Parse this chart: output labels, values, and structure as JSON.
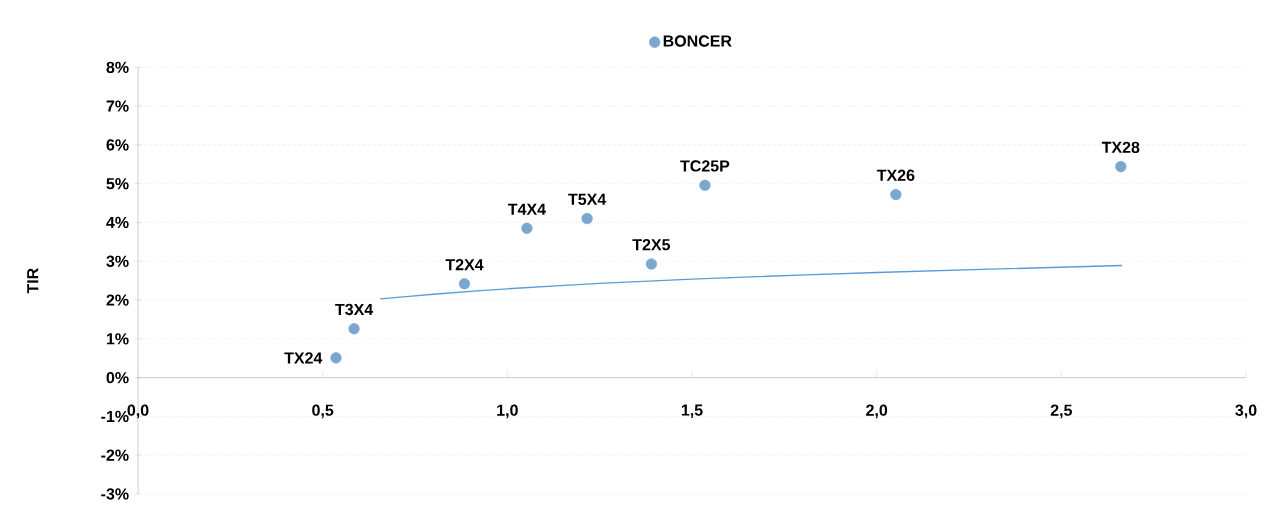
{
  "chart_data": {
    "type": "scatter",
    "ylabel": "TIR",
    "xlim": [
      0,
      3
    ],
    "ylim": [
      -3,
      8
    ],
    "xticks": [
      {
        "value": 0,
        "label": "0,0"
      },
      {
        "value": 0.5,
        "label": "0,5"
      },
      {
        "value": 1,
        "label": "1,0"
      },
      {
        "value": 1.5,
        "label": "1,5"
      },
      {
        "value": 2,
        "label": "2,0"
      },
      {
        "value": 2.5,
        "label": "2,5"
      },
      {
        "value": 3,
        "label": "3,0"
      }
    ],
    "yticks": [
      {
        "value": -3,
        "label": "-3%"
      },
      {
        "value": -2,
        "label": "-2%"
      },
      {
        "value": -1,
        "label": "-1%"
      },
      {
        "value": 0,
        "label": "0%"
      },
      {
        "value": 1,
        "label": "1%"
      },
      {
        "value": 2,
        "label": "2%"
      },
      {
        "value": 3,
        "label": "3%"
      },
      {
        "value": 4,
        "label": "4%"
      },
      {
        "value": 5,
        "label": "5%"
      },
      {
        "value": 6,
        "label": "6%"
      },
      {
        "value": 7,
        "label": "7%"
      },
      {
        "value": 8,
        "label": "8%"
      }
    ],
    "grid": "y",
    "legend": "top",
    "series": [
      {
        "name": "BONCER",
        "marker": "circle",
        "color": "#7aa6d0",
        "x": [
          0.536,
          0.585,
          0.884,
          1.053,
          1.216,
          1.39,
          1.535,
          2.052,
          2.661
        ],
        "values": [
          0.51,
          1.26,
          2.42,
          3.85,
          4.1,
          2.93,
          4.96,
          4.72,
          5.44
        ]
      },
      {
        "type": "line",
        "marker": "none",
        "color": "#5b9bd5",
        "x": [
          0.656,
          0.8,
          1.0,
          1.25,
          1.5,
          2.0,
          2.664
        ],
        "values": [
          2.03,
          2.15,
          2.29,
          2.43,
          2.54,
          2.71,
          2.89
        ]
      }
    ],
    "annotations": [
      {
        "text": "TX24",
        "x": 0.536,
        "y": 0.51
      },
      {
        "text": "T3X4",
        "x": 0.585,
        "y": 1.26
      },
      {
        "text": "T2X4",
        "x": 0.884,
        "y": 2.42
      },
      {
        "text": "T4X4",
        "x": 1.053,
        "y": 3.85
      },
      {
        "text": "T5X4",
        "x": 1.216,
        "y": 4.1
      },
      {
        "text": "T2X5",
        "x": 1.39,
        "y": 2.93
      },
      {
        "text": "TC25P",
        "x": 1.535,
        "y": 4.96
      },
      {
        "text": "TX26",
        "x": 2.052,
        "y": 4.72
      },
      {
        "text": "TX28",
        "x": 2.661,
        "y": 5.44
      }
    ]
  }
}
